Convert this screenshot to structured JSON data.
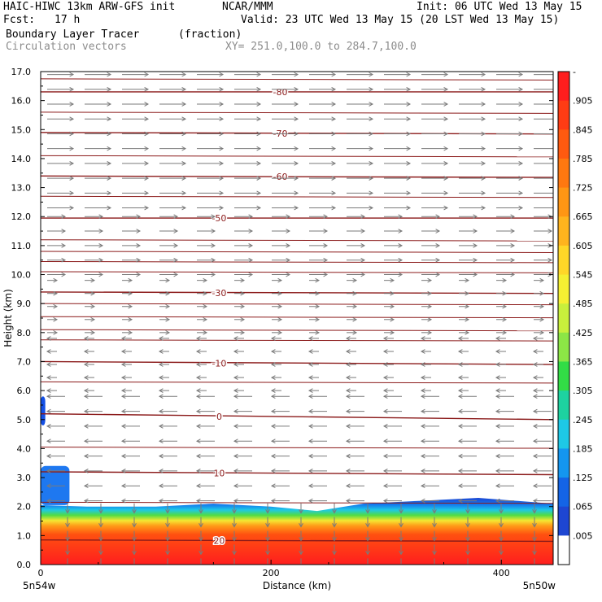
{
  "header": {
    "model": "HAIC-HIWC 13km ARW-GFS init",
    "org": "NCAR/MMM",
    "init": "Init: 06 UTC Wed 13 May 15",
    "fcst_label": "Fcst:",
    "fcst_value": "17 h",
    "valid": "Valid: 23 UTC Wed 13 May 15 (20 LST Wed 13 May 15)",
    "field_name": "Boundary Layer Tracer",
    "field_units": "(fraction)",
    "vector_name": "Circulation vectors",
    "xy_range": "XY= 251.0,100.0 to 284.7,100.0"
  },
  "chart_data": {
    "type": "heatmap",
    "xlabel": "Distance (km)",
    "ylabel": "Height (km)",
    "xlim": [
      0,
      445
    ],
    "ylim": [
      0,
      17
    ],
    "x_ticks": [
      0,
      200,
      400
    ],
    "y_ticks": [
      "0.0",
      "1.0",
      "2.0",
      "3.0",
      "4.0",
      "5.0",
      "6.0",
      "7.0",
      "8.0",
      "9.0",
      "10.0",
      "11.0",
      "12.0",
      "13.0",
      "14.0",
      "15.0",
      "16.0",
      "17.0"
    ],
    "x_end_labels": {
      "left": "5n54w",
      "right": "5n50w"
    },
    "colorbar_labels": [
      "-",
      ".905",
      ".845",
      ".785",
      ".725",
      ".665",
      ".605",
      ".545",
      ".485",
      ".425",
      ".365",
      ".305",
      ".245",
      ".185",
      ".125",
      ".065",
      ".005"
    ],
    "colorbar_colors": [
      "#ff1e1e",
      "#ff3c14",
      "#ff5a10",
      "#ff7810",
      "#ff9614",
      "#ffb41e",
      "#ffd728",
      "#f5f032",
      "#c8f03c",
      "#8ce646",
      "#32dc46",
      "#1ed2a0",
      "#1ec8e6",
      "#1496f0",
      "#1464e6",
      "#1e46d2",
      "#ffffff"
    ],
    "temperature_contours": [
      {
        "label": "-80",
        "x": 208,
        "height_left": 16.3,
        "height_right": 16.3
      },
      {
        "label": "-70",
        "x": 208,
        "height_left": 14.9,
        "height_right": 14.85
      },
      {
        "label": "-60",
        "x": 208,
        "height_left": 13.4,
        "height_right": 13.35
      },
      {
        "label": "-50",
        "x": 155,
        "height_left": 11.95,
        "height_right": 11.95
      },
      {
        "label": "-30",
        "x": 155,
        "height_left": 9.4,
        "height_right": 9.35
      },
      {
        "label": "-10",
        "x": 155,
        "height_left": 7.0,
        "height_right": 6.9
      },
      {
        "label": "0",
        "x": 155,
        "height_left": 5.2,
        "height_right": 5.0
      },
      {
        "label": "10",
        "x": 155,
        "height_left": 3.2,
        "height_right": 3.1
      },
      {
        "label": "20",
        "x": 155,
        "height_left": 0.85,
        "height_right": 0.8
      }
    ],
    "extra_isotherms_km": [
      16.75,
      15.6,
      14.1,
      12.7,
      11.2,
      10.8,
      10.45,
      10.1,
      9.0,
      8.55,
      8.1,
      7.75,
      6.3,
      4.05,
      2.15
    ],
    "tracer_top_km": [
      [
        0,
        2.05
      ],
      [
        40,
        2.0
      ],
      [
        100,
        2.0
      ],
      [
        150,
        2.1
      ],
      [
        200,
        2.0
      ],
      [
        240,
        1.85
      ],
      [
        280,
        2.1
      ],
      [
        330,
        2.2
      ],
      [
        380,
        2.3
      ],
      [
        445,
        2.1
      ]
    ],
    "upper_tracer_blobs": [
      {
        "x_max": 4,
        "height_range": [
          4.8,
          5.8
        ]
      },
      {
        "x_max": 25,
        "height_range": [
          2.05,
          3.4
        ]
      }
    ],
    "vector_layers": [
      {
        "height_range": [
          12.3,
          16.9
        ],
        "direction": "east",
        "magnitude": "strong"
      },
      {
        "height_range": [
          10.0,
          12.0
        ],
        "direction": "east",
        "magnitude": "moderate"
      },
      {
        "height_range": [
          8.0,
          9.8
        ],
        "direction": "east",
        "magnitude": "weak"
      },
      {
        "height_range": [
          6.0,
          7.8
        ],
        "direction": "west",
        "magnitude": "weak"
      },
      {
        "height_range": [
          2.2,
          5.8
        ],
        "direction": "west",
        "magnitude": "moderate"
      },
      {
        "height_range": [
          0.1,
          2.0
        ],
        "direction": "down",
        "magnitude": "strong"
      }
    ],
    "contour_color": "#8b1a1a",
    "vector_color": "#7a7a7a",
    "grid": false
  }
}
